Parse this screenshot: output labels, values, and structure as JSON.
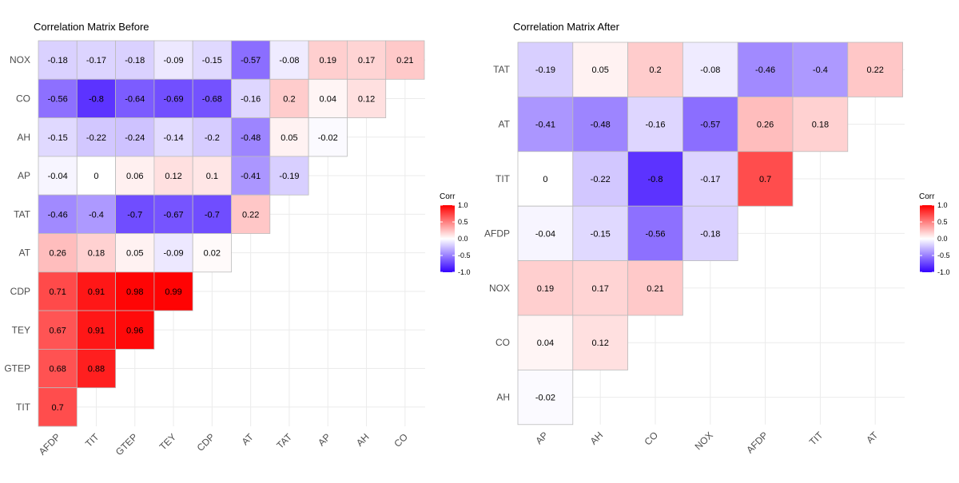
{
  "chart_data": [
    {
      "type": "heatmap",
      "title": "Correlation Matrix Before",
      "legend_title": "Corr",
      "legend_ticks": [
        "1.0",
        "0.5",
        "0.0",
        "-0.5",
        "-1.0"
      ],
      "x_labels": [
        "AFDP",
        "TIT",
        "GTEP",
        "TEY",
        "CDP",
        "AT",
        "TAT",
        "AP",
        "AH",
        "CO"
      ],
      "y_labels_bottom_to_top": [
        "TIT",
        "GTEP",
        "TEY",
        "CDP",
        "AT",
        "TAT",
        "AP",
        "AH",
        "CO",
        "NOX"
      ],
      "rows": [
        {
          "y": "NOX",
          "values": [
            -0.18,
            -0.17,
            -0.18,
            -0.09,
            -0.15,
            -0.57,
            -0.08,
            0.19,
            0.17,
            0.21
          ]
        },
        {
          "y": "CO",
          "values": [
            -0.56,
            -0.8,
            -0.64,
            -0.69,
            -0.68,
            -0.16,
            0.2,
            0.04,
            0.12
          ]
        },
        {
          "y": "AH",
          "values": [
            -0.15,
            -0.22,
            -0.24,
            -0.14,
            -0.2,
            -0.48,
            0.05,
            -0.02
          ]
        },
        {
          "y": "AP",
          "values": [
            -0.04,
            0,
            0.06,
            0.12,
            0.1,
            -0.41,
            -0.19
          ]
        },
        {
          "y": "TAT",
          "values": [
            -0.46,
            -0.4,
            -0.7,
            -0.67,
            -0.7,
            0.22
          ]
        },
        {
          "y": "AT",
          "values": [
            0.26,
            0.18,
            0.05,
            -0.09,
            0.02
          ]
        },
        {
          "y": "CDP",
          "values": [
            0.71,
            0.91,
            0.98,
            0.99
          ]
        },
        {
          "y": "TEY",
          "values": [
            0.67,
            0.91,
            0.96
          ]
        },
        {
          "y": "GTEP",
          "values": [
            0.68,
            0.88
          ]
        },
        {
          "y": "TIT",
          "values": [
            0.7
          ]
        }
      ]
    },
    {
      "type": "heatmap",
      "title": "Correlation Matrix After",
      "legend_title": "Corr",
      "legend_ticks": [
        "1.0",
        "0.5",
        "0.0",
        "-0.5",
        "-1.0"
      ],
      "x_labels": [
        "AP",
        "AH",
        "CO",
        "NOX",
        "AFDP",
        "TIT",
        "AT"
      ],
      "y_labels_bottom_to_top": [
        "AH",
        "CO",
        "NOX",
        "AFDP",
        "TIT",
        "AT",
        "TAT"
      ],
      "rows": [
        {
          "y": "TAT",
          "values": [
            -0.19,
            0.05,
            0.2,
            -0.08,
            -0.46,
            -0.4,
            0.22
          ]
        },
        {
          "y": "AT",
          "values": [
            -0.41,
            -0.48,
            -0.16,
            -0.57,
            0.26,
            0.18
          ]
        },
        {
          "y": "TIT",
          "values": [
            0,
            -0.22,
            -0.8,
            -0.17,
            0.7
          ]
        },
        {
          "y": "AFDP",
          "values": [
            -0.04,
            -0.15,
            -0.56,
            -0.18
          ]
        },
        {
          "y": "NOX",
          "values": [
            0.19,
            0.17,
            0.21
          ]
        },
        {
          "y": "CO",
          "values": [
            0.04,
            0.12
          ]
        },
        {
          "y": "AH",
          "values": [
            -0.02
          ]
        }
      ]
    }
  ],
  "colors": {
    "low": "#3300ff",
    "mid": "#ffffff",
    "high": "#ff0000",
    "grid": "#ebebeb",
    "cell_border": "#bbbbbb"
  }
}
